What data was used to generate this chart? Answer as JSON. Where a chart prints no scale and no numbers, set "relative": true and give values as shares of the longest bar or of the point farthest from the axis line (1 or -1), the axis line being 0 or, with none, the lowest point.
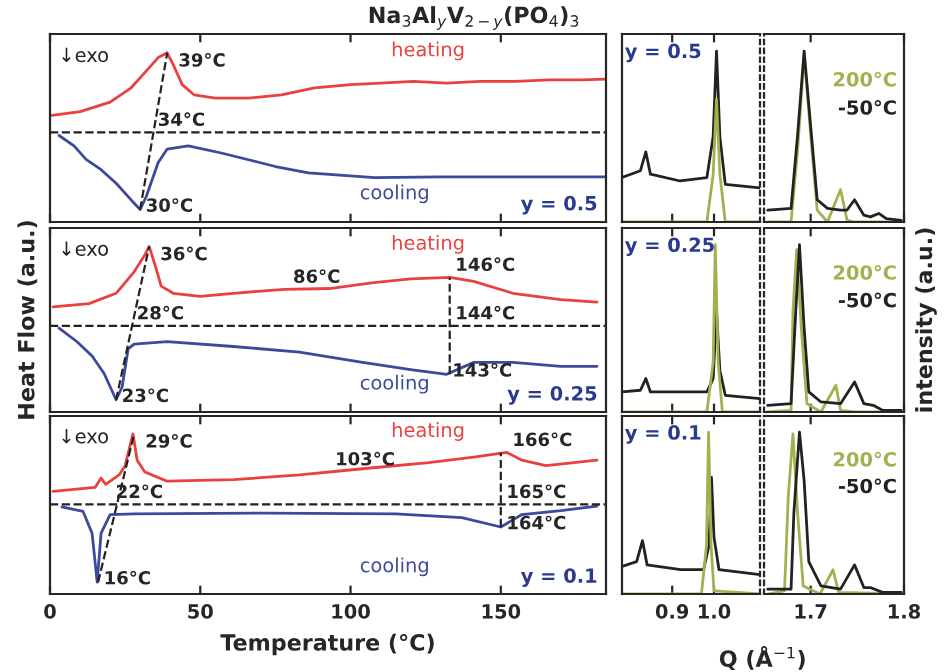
{
  "chart_data": [
    {
      "type": "line",
      "title": "Na$_{3}$Al$_{y}$V$_{2−y}$(PO$_{4}$)$_{3}$",
      "relative": true,
      "xlim": [
        0,
        185
      ],
      "xticks": [
        0,
        50,
        100,
        150
      ],
      "tick_labels": false,
      "series": [
        {
          "name": "heating",
          "color": "#e8413f",
          "x": [
            0,
            10,
            20,
            27,
            32,
            36,
            39,
            41,
            44,
            48,
            55,
            66,
            77,
            88,
            100,
            110,
            121,
            132,
            143,
            155,
            166,
            177,
            185
          ],
          "values": [
            0.21,
            0.26,
            0.38,
            0.56,
            0.77,
            0.94,
            1.0,
            0.85,
            0.6,
            0.47,
            0.43,
            0.43,
            0.47,
            0.56,
            0.6,
            0.62,
            0.64,
            0.62,
            0.64,
            0.64,
            0.66,
            0.66,
            0.67
          ]
        },
        {
          "name": "cooling",
          "color": "#3c4a9c",
          "x": [
            3,
            8,
            12,
            17,
            22,
            27,
            30,
            32,
            36,
            39,
            46,
            57,
            75,
            86,
            108,
            130,
            152,
            185
          ],
          "values": [
            -0.04,
            -0.17,
            -0.34,
            -0.47,
            -0.64,
            -0.85,
            -0.97,
            -0.81,
            -0.38,
            -0.21,
            -0.17,
            -0.26,
            -0.43,
            -0.51,
            -0.57,
            -0.56,
            -0.56,
            -0.56
          ]
        },
        {
          "color": "#222222",
          "line_style": "dashed",
          "x": [
            30,
            39
          ],
          "values": [
            -0.97,
            1.0
          ]
        }
      ],
      "ref_lines": [
        {
          "axis": "y",
          "value": 0,
          "color": "#222222",
          "line_style": "dashed"
        }
      ],
      "annotations": [
        "↓exo",
        "y = 0.5",
        {
          "text": "39°C",
          "x": 39,
          "y": 1.0
        },
        {
          "text": "34°C",
          "x": 34,
          "y": 0
        },
        {
          "text": "30°C",
          "x": 30,
          "y": -0.97
        }
      ]
    },
    {
      "type": "line",
      "relative": true,
      "xlim": [
        0.78,
        1.11
      ],
      "xticks": [
        0.9,
        1.0
      ],
      "tick_labels": false,
      "series": [
        {
          "color": "#222222",
          "x": [
            0.78,
            0.824,
            0.837,
            0.848,
            0.919,
            0.983,
            0.998,
            1.006,
            1.014,
            1.027,
            1.11
          ],
          "values": [
            0.26,
            0.3,
            0.41,
            0.28,
            0.24,
            0.26,
            0.5,
            1.0,
            0.5,
            0.22,
            0.2
          ]
        },
        {
          "color": "#a4b050",
          "x": [
            0.78,
            0.983,
            0.998,
            1.006,
            1.014,
            1.027,
            1.11
          ],
          "values": [
            0,
            0,
            0.28,
            0.72,
            0.28,
            0,
            0
          ]
        }
      ],
      "annotations": [
        "y = 0.5"
      ]
    },
    {
      "type": "line",
      "relative": true,
      "xlim": [
        1.65,
        1.8
      ],
      "xticks": [
        1.7,
        1.8
      ],
      "tick_labels": false,
      "series": [
        {
          "name": "200°C",
          "color": "#a4b050",
          "x": [
            1.654,
            1.679,
            1.686,
            1.693,
            1.7,
            1.707,
            1.718,
            1.732,
            1.739,
            1.747,
            1.773,
            1.797
          ],
          "values": [
            0,
            0,
            0.42,
            0.98,
            0.51,
            0.07,
            0,
            0.19,
            0.01,
            0,
            0,
            0
          ]
        },
        {
          "name": "-50°C",
          "color": "#222222",
          "x": [
            1.654,
            1.679,
            1.686,
            1.693,
            1.7,
            1.707,
            1.718,
            1.732,
            1.739,
            1.747,
            1.757,
            1.764,
            1.773,
            1.781,
            1.797
          ],
          "values": [
            0.07,
            0.08,
            0.51,
            1.0,
            0.56,
            0.13,
            0.08,
            0.07,
            0.07,
            0.13,
            0.04,
            0.03,
            0.05,
            0.02,
            0.01
          ]
        }
      ]
    },
    {
      "type": "line",
      "relative": true,
      "xlim": [
        0,
        185
      ],
      "xticks": [
        0,
        50,
        100,
        150
      ],
      "tick_labels": false,
      "ylabel": "Heat Flow (a.u.)",
      "series": [
        {
          "name": "heating",
          "color": "#e8413f",
          "x": [
            1,
            13,
            22,
            28,
            31.5,
            33,
            35,
            37,
            41,
            50,
            61,
            78,
            93,
            107,
            120,
            133,
            141,
            154,
            170,
            182
          ],
          "values": [
            0.24,
            0.28,
            0.41,
            0.68,
            0.89,
            1.0,
            0.76,
            0.5,
            0.41,
            0.37,
            0.41,
            0.46,
            0.47,
            0.54,
            0.59,
            0.61,
            0.56,
            0.41,
            0.33,
            0.3
          ]
        },
        {
          "name": "cooling",
          "color": "#3c4a9c",
          "x": [
            3,
            9,
            14,
            18,
            22,
            24,
            26,
            28,
            39,
            61,
            83,
            104,
            120,
            132,
            141,
            154,
            170,
            182
          ],
          "values": [
            -0.03,
            -0.2,
            -0.38,
            -0.6,
            -0.93,
            -0.77,
            -0.29,
            -0.23,
            -0.2,
            -0.26,
            -0.33,
            -0.46,
            -0.55,
            -0.61,
            -0.46,
            -0.46,
            -0.51,
            -0.51
          ]
        },
        {
          "color": "#222222",
          "line_style": "dashed",
          "x": [
            22,
            33
          ],
          "values": [
            -0.93,
            1.0
          ]
        },
        {
          "color": "#222222",
          "line_style": "dashed",
          "x": [
            133,
            133
          ],
          "values": [
            -0.61,
            0.61
          ]
        }
      ],
      "ref_lines": [
        {
          "axis": "y",
          "value": 0,
          "color": "#222222",
          "line_style": "dashed"
        }
      ],
      "annotations": [
        "↓exo",
        "y = 0.25",
        {
          "text": "36°C",
          "x": 33,
          "y": 1.0
        },
        {
          "text": "28°C",
          "x": 27,
          "y": 0
        },
        {
          "text": "23°C",
          "x": 22,
          "y": -0.93
        },
        {
          "text": "86°C",
          "x": 79,
          "y": 0.46
        },
        {
          "text": "146°C",
          "x": 133,
          "y": 0.61
        },
        {
          "text": "144°C",
          "x": 133,
          "y": 0
        },
        {
          "text": "143°C",
          "x": 132,
          "y": -0.61
        }
      ]
    },
    {
      "type": "line",
      "relative": true,
      "xlim": [
        0.78,
        1.11
      ],
      "xticks": [
        0.9,
        1.0
      ],
      "tick_labels": false,
      "series": [
        {
          "color": "#222222",
          "x": [
            0.78,
            0.824,
            0.837,
            0.848,
            0.92,
            0.983,
            0.998,
            1.006,
            1.014,
            1.027,
            1.11
          ],
          "values": [
            0.12,
            0.13,
            0.2,
            0.12,
            0.12,
            0.12,
            0.2,
            0.6,
            0.25,
            0.1,
            0.08
          ]
        },
        {
          "color": "#a4b050",
          "x": [
            0.78,
            0.983,
            0.998,
            1.003,
            1.01,
            1.02,
            1.11
          ],
          "values": [
            0,
            0,
            0.3,
            1.0,
            0.3,
            0,
            0
          ]
        }
      ],
      "annotations": [
        "y = 0.25"
      ]
    },
    {
      "type": "line",
      "relative": true,
      "xlim": [
        1.65,
        1.8
      ],
      "xticks": [
        1.7,
        1.8
      ],
      "tick_labels": false,
      "ylabel": "intensity (a.u.)",
      "series": [
        {
          "name": "200°C",
          "color": "#a4b050",
          "x": [
            1.654,
            1.679,
            1.681,
            1.685,
            1.69,
            1.696,
            1.711,
            1.727,
            1.732,
            1.747,
            1.797
          ],
          "values": [
            0,
            0.01,
            0.6,
            0.97,
            0.5,
            0.05,
            0,
            0.16,
            0.01,
            0,
            0
          ]
        },
        {
          "name": "-50°C",
          "color": "#222222",
          "x": [
            1.654,
            1.679,
            1.684,
            1.688,
            1.693,
            1.698,
            1.711,
            1.732,
            1.747,
            1.757,
            1.767,
            1.777,
            1.797
          ],
          "values": [
            0.04,
            0.05,
            0.6,
            1.0,
            0.5,
            0.12,
            0.06,
            0.05,
            0.18,
            0.05,
            0.04,
            0.01,
            0.01
          ]
        }
      ]
    },
    {
      "type": "line",
      "relative": true,
      "xlim": [
        0,
        185
      ],
      "xticks": [
        0,
        50,
        100,
        150
      ],
      "tick_labels": "x",
      "xlabel": "Temperature (°C)",
      "series": [
        {
          "name": "heating",
          "color": "#e8413f",
          "x": [
            1,
            15,
            17,
            18.5,
            23,
            25,
            27.6,
            29,
            31.5,
            39,
            61,
            83,
            104,
            126,
            141,
            152,
            157,
            165,
            182
          ],
          "values": [
            0.17,
            0.22,
            0.34,
            0.26,
            0.38,
            0.5,
            0.91,
            0.57,
            0.42,
            0.3,
            0.32,
            0.38,
            0.46,
            0.54,
            0.61,
            0.67,
            0.57,
            0.5,
            0.57
          ]
        },
        {
          "name": "cooling",
          "color": "#3c4a9c",
          "x": [
            4,
            11,
            14,
            15.7,
            17,
            20,
            28,
            72,
            115,
            137,
            150,
            157,
            170,
            182
          ],
          "values": [
            -0.03,
            -0.09,
            -0.37,
            -1.0,
            -0.37,
            -0.13,
            -0.12,
            -0.11,
            -0.12,
            -0.17,
            -0.29,
            -0.13,
            -0.08,
            -0.02
          ]
        },
        {
          "color": "#222222",
          "line_style": "dashed",
          "x": [
            16,
            28
          ],
          "values": [
            -1.0,
            0.91
          ]
        },
        {
          "color": "#222222",
          "line_style": "dashed",
          "x": [
            150,
            150
          ],
          "values": [
            -0.29,
            0.67
          ]
        }
      ],
      "ref_lines": [
        {
          "axis": "y",
          "value": 0,
          "color": "#222222",
          "line_style": "dashed"
        }
      ],
      "annotations": [
        "↓exo",
        "y = 0.1",
        {
          "text": "29°C",
          "x": 28,
          "y": 0.91
        },
        {
          "text": "22°C",
          "x": 20,
          "y": 0
        },
        {
          "text": "16°C",
          "x": 16,
          "y": -1.0
        },
        {
          "text": "103°C",
          "x": 93,
          "y": 0.42
        },
        {
          "text": "166°C",
          "x": 152,
          "y": 0.67
        },
        {
          "text": "165°C",
          "x": 150,
          "y": 0
        },
        {
          "text": "164°C",
          "x": 150,
          "y": -0.29
        }
      ]
    },
    {
      "type": "line",
      "relative": true,
      "xlim": [
        0.78,
        1.11
      ],
      "xticks": [
        0.9,
        {
          "value": 1,
          "label": "1.0"
        }
      ],
      "tick_labels": "x",
      "xlabel": "Q (Å$^{−1}$)",
      "series": [
        {
          "color": "#222222",
          "x": [
            0.78,
            0.815,
            0.829,
            0.84,
            0.92,
            0.975,
            0.988,
            0.994,
            1.0,
            1.012,
            1.11
          ],
          "values": [
            0.17,
            0.2,
            0.33,
            0.18,
            0.15,
            0.15,
            0.3,
            0.72,
            0.35,
            0.15,
            0.12
          ]
        },
        {
          "color": "#a4b050",
          "x": [
            0.78,
            0.97,
            0.982,
            0.987,
            0.993,
            1.0,
            1.11
          ],
          "values": [
            0,
            0,
            0.3,
            1.0,
            0.3,
            0.02,
            0
          ]
        }
      ],
      "annotations": [
        "y = 0.1"
      ]
    },
    {
      "type": "line",
      "relative": true,
      "xlim": [
        1.65,
        1.8
      ],
      "xticks": [
        1.7,
        1.8
      ],
      "tick_labels": "x",
      "series": [
        {
          "name": "200°C",
          "color": "#a4b050",
          "x": [
            1.654,
            1.672,
            1.676,
            1.681,
            1.686,
            1.692,
            1.71,
            1.724,
            1.73,
            1.797
          ],
          "values": [
            0,
            0.02,
            0.6,
            0.99,
            0.5,
            0.05,
            0,
            0.15,
            0.01,
            0
          ]
        },
        {
          "name": "-50°C",
          "color": "#222222",
          "x": [
            1.654,
            1.679,
            1.682,
            1.688,
            1.693,
            1.698,
            1.711,
            1.732,
            1.747,
            1.757,
            1.764,
            1.777,
            1.797
          ],
          "values": [
            0.03,
            0.03,
            0.5,
            1.0,
            0.7,
            0.2,
            0.05,
            0.03,
            0.18,
            0.04,
            0.04,
            0.01,
            0.01
          ]
        }
      ]
    }
  ]
}
